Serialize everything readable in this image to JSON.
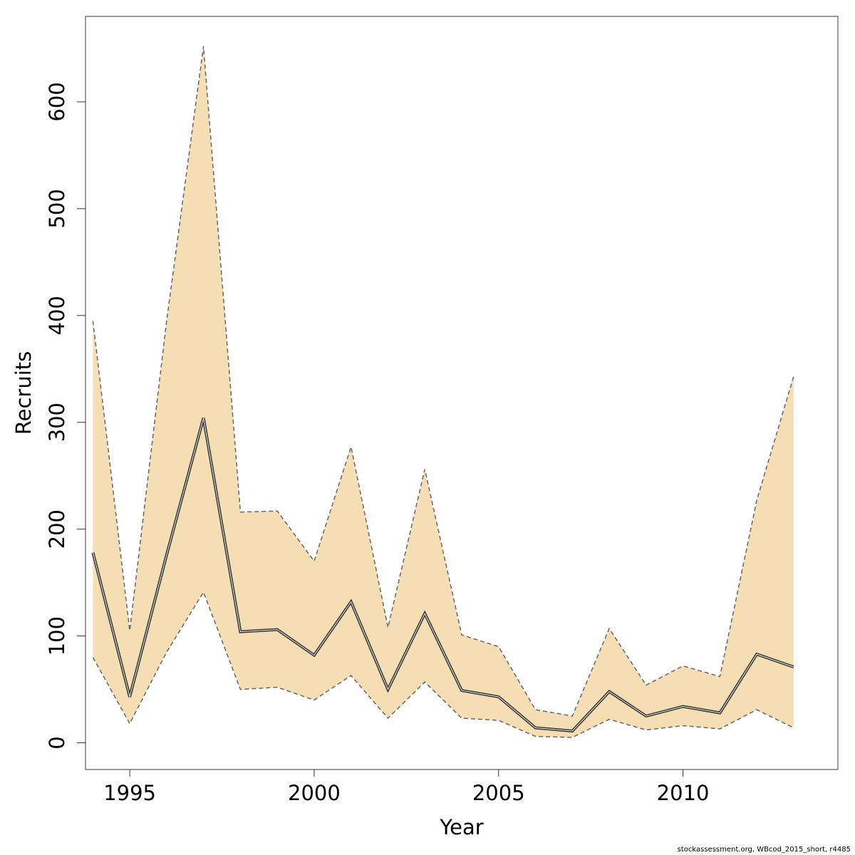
{
  "chart_data": {
    "type": "area",
    "xlabel": "Year",
    "ylabel": "Recruits",
    "xlim": [
      1993.8,
      2014.2
    ],
    "ylim": [
      -25,
      680
    ],
    "x_ticks": [
      1995,
      2000,
      2005,
      2010
    ],
    "y_ticks": [
      0,
      100,
      200,
      300,
      400,
      500,
      600
    ],
    "grid": false,
    "colors": {
      "band_fill": "#f5deb3",
      "estimate_line": "#333333",
      "bound_line": "#666666"
    },
    "x": [
      1994,
      1995,
      1996,
      1997,
      1998,
      1999,
      2000,
      2001,
      2002,
      2003,
      2004,
      2005,
      2006,
      2007,
      2008,
      2009,
      2010,
      2011,
      2012,
      2013
    ],
    "series": [
      {
        "role": "estimate",
        "values": [
          178,
          43,
          176,
          304,
          104,
          106,
          82,
          132,
          50,
          121,
          49,
          43,
          14,
          11,
          48,
          25,
          34,
          28,
          83,
          71
        ]
      },
      {
        "role": "upper",
        "values": [
          395,
          105,
          395,
          652,
          216,
          217,
          170,
          277,
          108,
          256,
          101,
          90,
          31,
          25,
          107,
          54,
          72,
          62,
          227,
          343
        ]
      },
      {
        "role": "lower",
        "values": [
          80,
          18,
          85,
          141,
          50,
          52,
          40,
          63,
          23,
          57,
          23,
          21,
          6,
          5,
          22,
          12,
          16,
          13,
          31,
          14
        ]
      }
    ]
  },
  "footer": {
    "text": "stockassessment.org, WBcod_2015_short, r4485"
  }
}
